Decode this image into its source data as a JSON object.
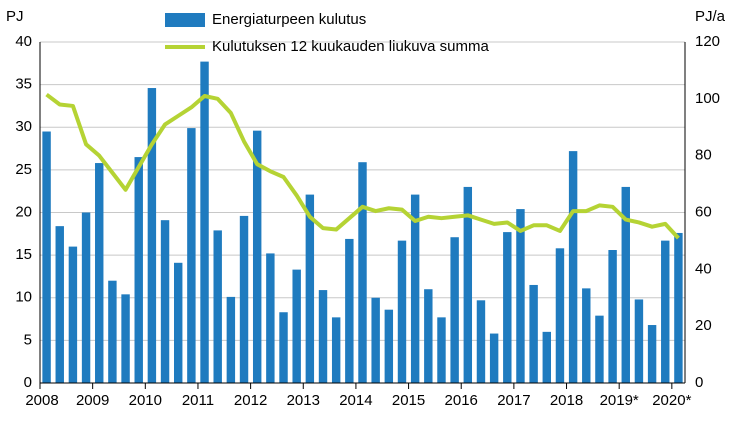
{
  "chart_data": {
    "type": "bar-line",
    "y_label": "PJ",
    "y2_label": "PJ/a",
    "categories": [
      "2008",
      null,
      null,
      null,
      "2009",
      null,
      null,
      null,
      "2010",
      null,
      null,
      null,
      "2011",
      null,
      null,
      null,
      "2012",
      null,
      null,
      null,
      "2013",
      null,
      null,
      null,
      "2014",
      null,
      null,
      null,
      "2015",
      null,
      null,
      null,
      "2016",
      null,
      null,
      null,
      "2017",
      null,
      null,
      null,
      "2018",
      null,
      null,
      null,
      "2019*",
      null,
      null,
      null,
      "2020*"
    ],
    "series": [
      {
        "name": "Energiaturpeen kulutus",
        "type": "bar",
        "color": "#1f7bbf",
        "values": [
          29.5,
          18.4,
          16,
          20,
          25.8,
          12,
          10.4,
          26.5,
          34.6,
          19.1,
          14.1,
          29.9,
          37.7,
          17.9,
          10.1,
          19.6,
          29.6,
          15.2,
          8.3,
          13.3,
          22.1,
          10.9,
          7.7,
          16.9,
          25.9,
          10,
          8.6,
          16.7,
          22.1,
          11,
          7.7,
          17.1,
          23,
          9.7,
          5.8,
          17.7,
          20.4,
          11.5,
          6,
          15.8,
          27.2,
          11.1,
          7.9,
          15.6,
          23,
          9.8,
          6.8,
          16.7,
          17.6
        ]
      },
      {
        "name": "Kulutuksen 12 kuukauden liukuva summa",
        "type": "line",
        "axis": "y2",
        "color": "#b5d334",
        "values": [
          101.5,
          98,
          97.5,
          84,
          80,
          74,
          68,
          76,
          84,
          91,
          94,
          97,
          101,
          100,
          95,
          85,
          77,
          74.5,
          72.5,
          66,
          58.5,
          54.5,
          54,
          58,
          62,
          60.5,
          61.5,
          61,
          57,
          58.5,
          58,
          58.5,
          59,
          57.5,
          56,
          56.5,
          53.5,
          55.5,
          55.5,
          53.5,
          60.5,
          60.5,
          62.5,
          62,
          57.5,
          56.5,
          55,
          56,
          51
        ]
      }
    ],
    "ylim": [
      0,
      40
    ],
    "yticks": [
      0,
      5,
      10,
      15,
      20,
      25,
      30,
      35,
      40
    ],
    "y2lim": [
      0,
      120
    ],
    "y2ticks": [
      0,
      20,
      40,
      60,
      80,
      100,
      120
    ],
    "grid": true
  }
}
